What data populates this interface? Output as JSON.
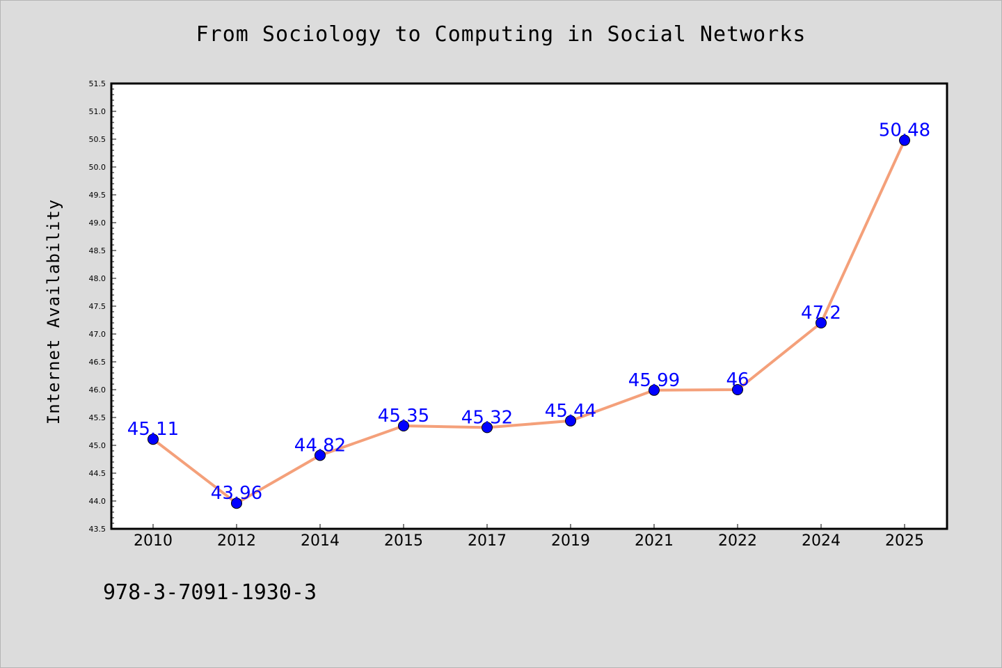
{
  "page": {
    "isbn": "978-3-7091-1930-3"
  },
  "chart_data": {
    "type": "line",
    "title": "From Sociology to Computing in Social Networks",
    "xlabel": "",
    "ylabel": "Internet Availability",
    "categories": [
      "2010",
      "2012",
      "2014",
      "2015",
      "2017",
      "2019",
      "2021",
      "2022",
      "2024",
      "2025"
    ],
    "values": [
      45.11,
      43.96,
      44.82,
      45.35,
      45.32,
      45.44,
      45.99,
      46,
      47.2,
      50.48
    ],
    "value_labels": [
      "45.11",
      "43.96",
      "44.82",
      "45.35",
      "45.32",
      "45.44",
      "45.99",
      "46",
      "47.2",
      "50.48"
    ],
    "ylim": [
      43.5,
      51.5
    ],
    "y_ticks": [
      "43.5",
      "44.0",
      "44.5",
      "45.0",
      "45.5",
      "46.0",
      "46.5",
      "47.0",
      "47.5",
      "48.0",
      "48.5",
      "49.0",
      "49.5",
      "50.0",
      "50.5",
      "51.0",
      "51.5"
    ],
    "grid": false,
    "legend": "none",
    "colors": {
      "line": "#f4a07a",
      "marker": "#0000ff",
      "data_label": "#0000ff",
      "plot_background": "#ffffff",
      "figure_background": "#dcdcdc"
    }
  }
}
